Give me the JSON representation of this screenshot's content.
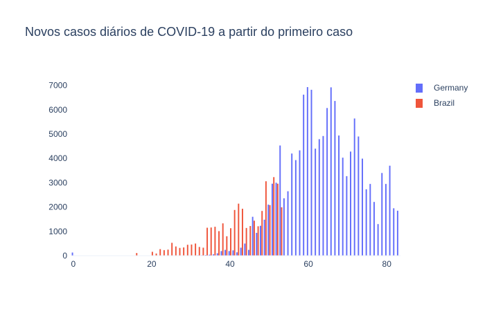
{
  "chart_data": {
    "type": "bar",
    "title": "Novos casos diários de COVID-19 a partir do primeiro caso",
    "xlabel": "",
    "ylabel": "",
    "xlim": [
      -0.5,
      83.5
    ],
    "ylim": [
      0,
      7300
    ],
    "x_ticks": [
      0,
      20,
      40,
      60,
      80
    ],
    "y_ticks": [
      0,
      1000,
      2000,
      3000,
      4000,
      5000,
      6000,
      7000
    ],
    "grid": false,
    "legend_position": "top-right",
    "series": [
      {
        "name": "Germany",
        "color": "#636efa",
        "x": [
          0,
          1,
          2,
          3,
          4,
          5,
          6,
          7,
          8,
          9,
          10,
          11,
          12,
          13,
          14,
          15,
          16,
          17,
          18,
          19,
          20,
          21,
          22,
          23,
          24,
          25,
          26,
          27,
          28,
          29,
          30,
          31,
          32,
          33,
          34,
          35,
          36,
          37,
          38,
          39,
          40,
          41,
          42,
          43,
          44,
          45,
          46,
          47,
          48,
          49,
          50,
          51,
          52,
          53,
          54,
          55,
          56,
          57,
          58,
          59,
          60,
          61,
          62,
          63,
          64,
          65,
          66,
          67,
          68,
          69,
          70,
          71,
          72,
          73,
          74,
          75,
          76,
          77,
          78,
          79,
          80,
          81,
          82,
          83
        ],
        "values": [
          130,
          0,
          0,
          0,
          0,
          0,
          0,
          0,
          0,
          0,
          0,
          0,
          0,
          0,
          0,
          0,
          0,
          0,
          0,
          0,
          0,
          0,
          0,
          0,
          0,
          0,
          0,
          0,
          0,
          0,
          0,
          10,
          20,
          20,
          30,
          40,
          60,
          100,
          190,
          240,
          190,
          220,
          140,
          330,
          500,
          240,
          1600,
          940,
          1230,
          1480,
          2100,
          2960,
          3000,
          4530,
          2360,
          2650,
          4200,
          3930,
          4330,
          6620,
          6930,
          6820,
          4400,
          4790,
          4920,
          6070,
          6920,
          6360,
          4940,
          4030,
          3270,
          4280,
          5640,
          4900,
          3990,
          2730,
          2950,
          2210,
          1300,
          3400,
          2950,
          3700,
          1950,
          1850
        ]
      },
      {
        "name": "Brazil",
        "color": "#ef553b",
        "x": [
          0,
          1,
          2,
          3,
          4,
          5,
          6,
          7,
          8,
          9,
          10,
          11,
          12,
          13,
          14,
          15,
          16,
          17,
          18,
          19,
          20,
          21,
          22,
          23,
          24,
          25,
          26,
          27,
          28,
          29,
          30,
          31,
          32,
          33,
          34,
          35,
          36,
          37,
          38,
          39,
          40,
          41,
          42,
          43,
          44,
          45,
          46,
          47,
          48,
          49,
          50,
          51,
          52,
          53
        ],
        "values": [
          0,
          0,
          0,
          0,
          0,
          0,
          0,
          0,
          0,
          0,
          0,
          0,
          0,
          0,
          0,
          0,
          110,
          0,
          0,
          0,
          160,
          90,
          270,
          230,
          250,
          530,
          380,
          320,
          340,
          450,
          460,
          500,
          360,
          330,
          1150,
          1160,
          1190,
          1010,
          1330,
          800,
          1130,
          1880,
          2140,
          1930,
          1140,
          1220,
          1440,
          1210,
          1840,
          3060,
          2080,
          3230,
          2960,
          1990
        ]
      }
    ]
  }
}
